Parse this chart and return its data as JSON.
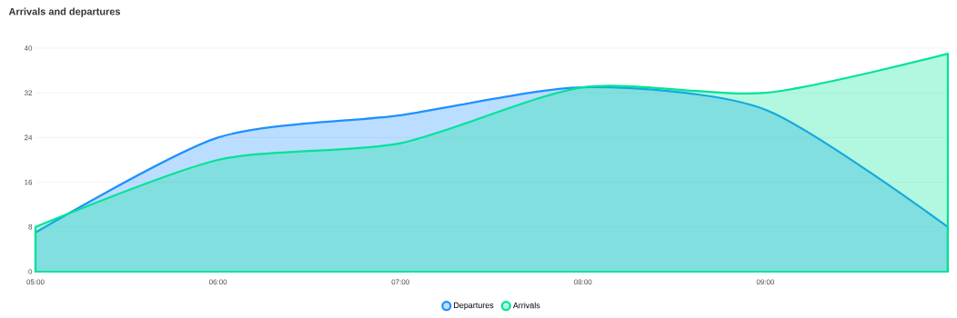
{
  "chart_data": {
    "type": "area",
    "title": "Arrivals and departures",
    "x": [
      5,
      6,
      7,
      8,
      9,
      10
    ],
    "series": [
      {
        "name": "Departures",
        "color": "#1e90ff",
        "values": [
          7,
          24,
          28,
          33,
          29,
          8
        ]
      },
      {
        "name": "Arrivals",
        "color": "#00e396",
        "values": [
          8,
          20,
          23,
          33,
          32,
          39
        ]
      }
    ],
    "xlim": [
      5,
      10
    ],
    "xticks": [
      {
        "value": 5,
        "label": "05:00"
      },
      {
        "value": 6,
        "label": "06:00"
      },
      {
        "value": 7,
        "label": "07:00"
      },
      {
        "value": 8,
        "label": "08:00"
      },
      {
        "value": 9,
        "label": "09:00"
      }
    ],
    "ylim": [
      0,
      40
    ],
    "yticks": [
      0,
      8,
      16,
      24,
      32,
      40
    ],
    "grid": "y",
    "legend": "bottom",
    "marker": "none",
    "line_style": "solid"
  }
}
